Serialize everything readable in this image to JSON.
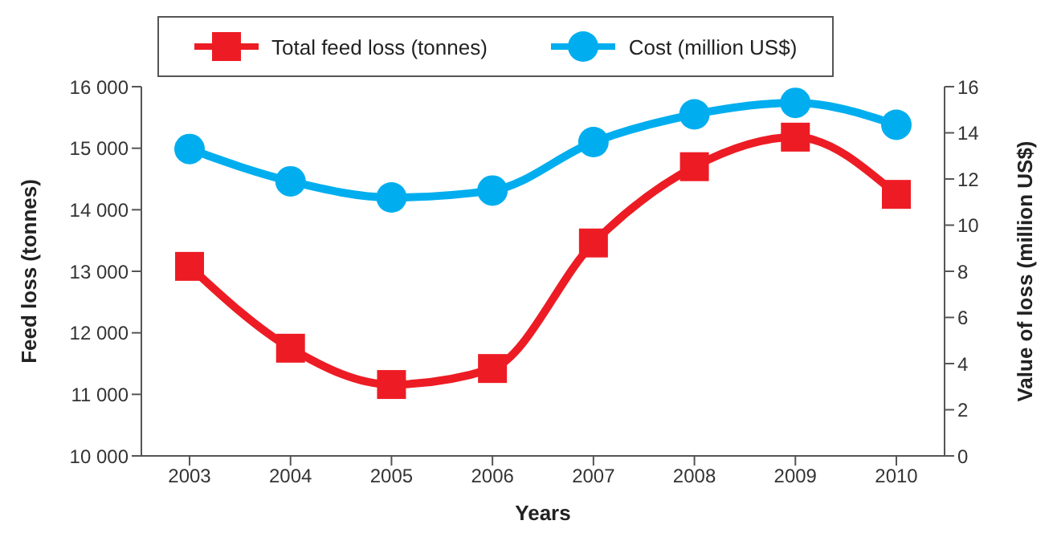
{
  "chart_data": {
    "type": "line",
    "xlabel": "Years",
    "ylabel": "Feed loss (tonnes)",
    "y2label": "Value of loss (million US$)",
    "categories": [
      "2003",
      "2004",
      "2005",
      "2006",
      "2007",
      "2008",
      "2009",
      "2010"
    ],
    "series": [
      {
        "name": "Total feed loss (tonnes)",
        "color": "#ed1c24",
        "marker": "square",
        "values": [
          13080,
          11750,
          11160,
          11420,
          13460,
          14700,
          15180,
          14250
        ]
      },
      {
        "name": "Cost (million US$)",
        "color": "#00aeef",
        "marker": "circle",
        "axis": "y2",
        "values": [
          13.3,
          11.9,
          11.2,
          11.5,
          13.6,
          14.8,
          15.3,
          14.35
        ]
      }
    ],
    "ylim": [
      10000,
      16000
    ],
    "yticks": [
      {
        "value": 10000,
        "label": "10 000"
      },
      {
        "value": 11000,
        "label": "11 000"
      },
      {
        "value": 12000,
        "label": "12 000"
      },
      {
        "value": 13000,
        "label": "13 000"
      },
      {
        "value": 14000,
        "label": "14 000"
      },
      {
        "value": 15000,
        "label": "15 000"
      },
      {
        "value": 16000,
        "label": "16 000"
      }
    ],
    "y2lim": [
      0,
      16
    ],
    "y2ticks": [
      0,
      2,
      4,
      6,
      8,
      10,
      12,
      14,
      16
    ],
    "grid": false,
    "legend": "top",
    "line_style": "solid"
  }
}
